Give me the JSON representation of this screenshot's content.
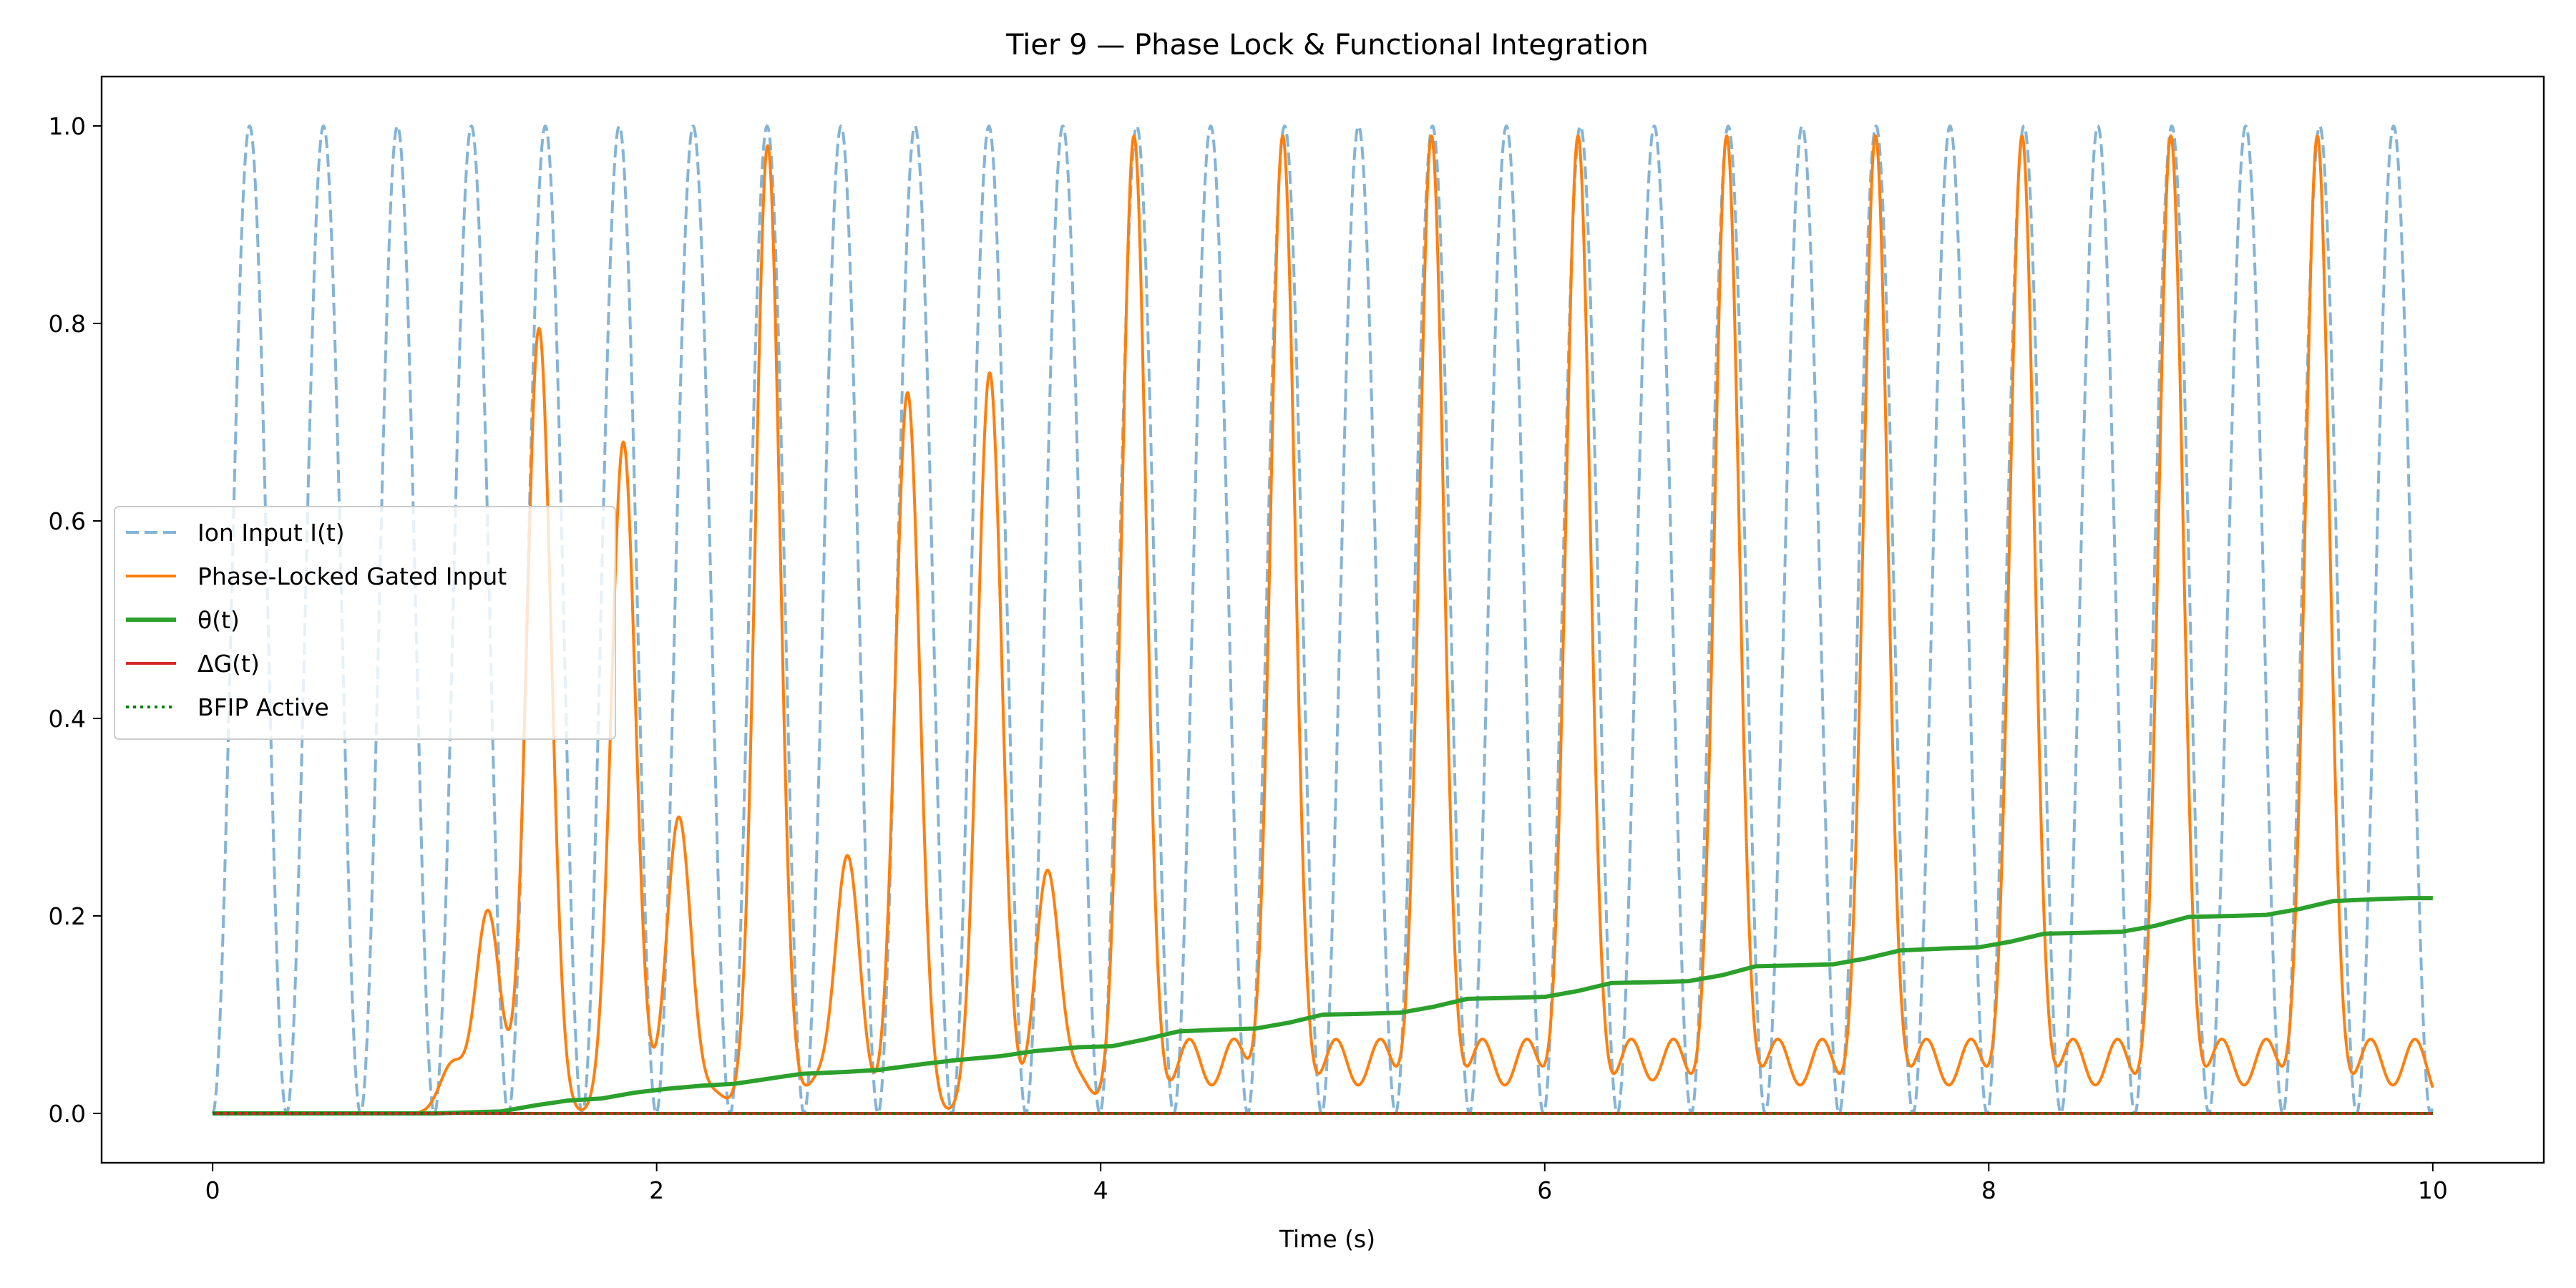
{
  "chart_data": {
    "type": "line",
    "title": "Tier 9 — Phase Lock & Functional Integration",
    "xlabel": "Time (s)",
    "ylabel": "",
    "xlim": [
      -0.5,
      10.5
    ],
    "ylim": [
      -0.05,
      1.05
    ],
    "xticks": [
      0,
      2,
      4,
      6,
      8,
      10
    ],
    "xtick_labels": [
      "0",
      "2",
      "4",
      "6",
      "8",
      "10"
    ],
    "yticks": [
      0.0,
      0.2,
      0.4,
      0.6,
      0.8,
      1.0
    ],
    "ytick_labels": [
      "0.0",
      "0.2",
      "0.4",
      "0.6",
      "0.8",
      "1.0"
    ],
    "grid": false,
    "legend_position": "center-left",
    "series": [
      {
        "name": "Ion Input I(t)",
        "color": "#1f77b4",
        "style": "dashed",
        "alpha": 0.55,
        "period": 0.333,
        "amplitude": 1.0,
        "x_start": 0,
        "x_end": 10
      },
      {
        "name": "Phase-Locked Gated Input",
        "color": "#ff7f0e",
        "style": "solid",
        "peaks": [
          {
            "x": 1.08,
            "y": 0.05
          },
          {
            "x": 1.24,
            "y": 0.205
          },
          {
            "x": 1.47,
            "y": 0.795
          },
          {
            "x": 1.85,
            "y": 0.68
          },
          {
            "x": 2.1,
            "y": 0.3
          },
          {
            "x": 2.26,
            "y": 0.02
          },
          {
            "x": 2.5,
            "y": 0.98
          },
          {
            "x": 2.72,
            "y": 0.03
          },
          {
            "x": 2.86,
            "y": 0.26
          },
          {
            "x": 3.13,
            "y": 0.73
          },
          {
            "x": 3.5,
            "y": 0.75
          },
          {
            "x": 3.76,
            "y": 0.245
          },
          {
            "x": 3.9,
            "y": 0.035
          },
          {
            "x": 4.15,
            "y": 0.99
          },
          {
            "x": 4.4,
            "y": 0.075
          },
          {
            "x": 4.6,
            "y": 0.075
          },
          {
            "x": 4.82,
            "y": 0.99
          },
          {
            "x": 5.06,
            "y": 0.075
          },
          {
            "x": 5.26,
            "y": 0.075
          },
          {
            "x": 5.49,
            "y": 0.99
          },
          {
            "x": 5.72,
            "y": 0.075
          },
          {
            "x": 5.92,
            "y": 0.075
          },
          {
            "x": 6.15,
            "y": 0.99
          },
          {
            "x": 6.39,
            "y": 0.075
          },
          {
            "x": 6.58,
            "y": 0.075
          },
          {
            "x": 6.82,
            "y": 0.99
          },
          {
            "x": 7.05,
            "y": 0.075
          },
          {
            "x": 7.25,
            "y": 0.075
          },
          {
            "x": 7.49,
            "y": 0.99
          },
          {
            "x": 7.72,
            "y": 0.075
          },
          {
            "x": 7.92,
            "y": 0.075
          },
          {
            "x": 8.15,
            "y": 0.99
          },
          {
            "x": 8.38,
            "y": 0.075
          },
          {
            "x": 8.58,
            "y": 0.075
          },
          {
            "x": 8.82,
            "y": 0.99
          },
          {
            "x": 9.05,
            "y": 0.075
          },
          {
            "x": 9.25,
            "y": 0.075
          },
          {
            "x": 9.48,
            "y": 0.99
          },
          {
            "x": 9.72,
            "y": 0.075
          },
          {
            "x": 9.92,
            "y": 0.075
          }
        ]
      },
      {
        "name": "θ(t)",
        "color": "#2ca02c",
        "style": "solid",
        "x": [
          0,
          1.0,
          1.3,
          1.45,
          1.6,
          1.75,
          1.9,
          2.05,
          2.2,
          2.35,
          2.5,
          2.65,
          2.85,
          3.0,
          3.2,
          3.35,
          3.55,
          3.7,
          3.9,
          4.05,
          4.2,
          4.35,
          4.55,
          4.7,
          4.85,
          5.0,
          5.2,
          5.35,
          5.5,
          5.65,
          5.85,
          6.0,
          6.15,
          6.3,
          6.5,
          6.65,
          6.8,
          6.95,
          7.15,
          7.3,
          7.45,
          7.6,
          7.8,
          7.95,
          8.1,
          8.25,
          8.45,
          8.6,
          8.75,
          8.9,
          9.1,
          9.25,
          9.4,
          9.55,
          9.75,
          9.9,
          10.0
        ],
        "y": [
          0,
          0,
          0.002,
          0.008,
          0.013,
          0.015,
          0.021,
          0.025,
          0.028,
          0.03,
          0.035,
          0.04,
          0.042,
          0.044,
          0.05,
          0.054,
          0.058,
          0.063,
          0.067,
          0.068,
          0.075,
          0.083,
          0.085,
          0.086,
          0.092,
          0.1,
          0.101,
          0.102,
          0.108,
          0.116,
          0.117,
          0.118,
          0.124,
          0.132,
          0.133,
          0.134,
          0.14,
          0.149,
          0.15,
          0.151,
          0.157,
          0.165,
          0.167,
          0.168,
          0.174,
          0.182,
          0.183,
          0.184,
          0.19,
          0.199,
          0.2,
          0.201,
          0.207,
          0.215,
          0.217,
          0.218,
          0.218
        ]
      },
      {
        "name": "ΔG(t)",
        "color": "#d62728",
        "style": "solid",
        "x": [
          0,
          10
        ],
        "y": [
          0,
          0
        ]
      },
      {
        "name": "BFIP Active",
        "color": "#008000",
        "style": "dotted",
        "x": [
          0,
          10
        ],
        "y": [
          0,
          0
        ]
      }
    ]
  }
}
